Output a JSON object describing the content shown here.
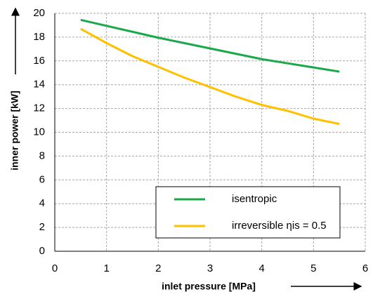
{
  "chart_data": {
    "type": "line",
    "x": [
      0.5,
      1,
      1.5,
      2,
      2.5,
      3,
      3.5,
      4,
      4.5,
      5,
      5.5
    ],
    "series": [
      {
        "name": "isentropic",
        "color": "#1aa84a",
        "values": [
          19.45,
          18.95,
          18.45,
          17.95,
          17.5,
          17.05,
          16.6,
          16.15,
          15.8,
          15.45,
          15.1
        ]
      },
      {
        "name": "irreversible ηis = 0.5",
        "color": "#ffc000",
        "values": [
          18.7,
          17.5,
          16.4,
          15.5,
          14.6,
          13.8,
          13.0,
          12.3,
          11.8,
          11.15,
          10.7
        ]
      }
    ],
    "x_label": "inlet pressure [MPa]",
    "y_label": "inner power [kW]",
    "xlim": [
      0,
      6
    ],
    "xticks": [
      0,
      1,
      2,
      3,
      4,
      5,
      6
    ],
    "ylim": [
      0,
      20
    ],
    "yticks": [
      0,
      2,
      4,
      6,
      8,
      10,
      12,
      14,
      16,
      18,
      20
    ],
    "grid": true
  }
}
